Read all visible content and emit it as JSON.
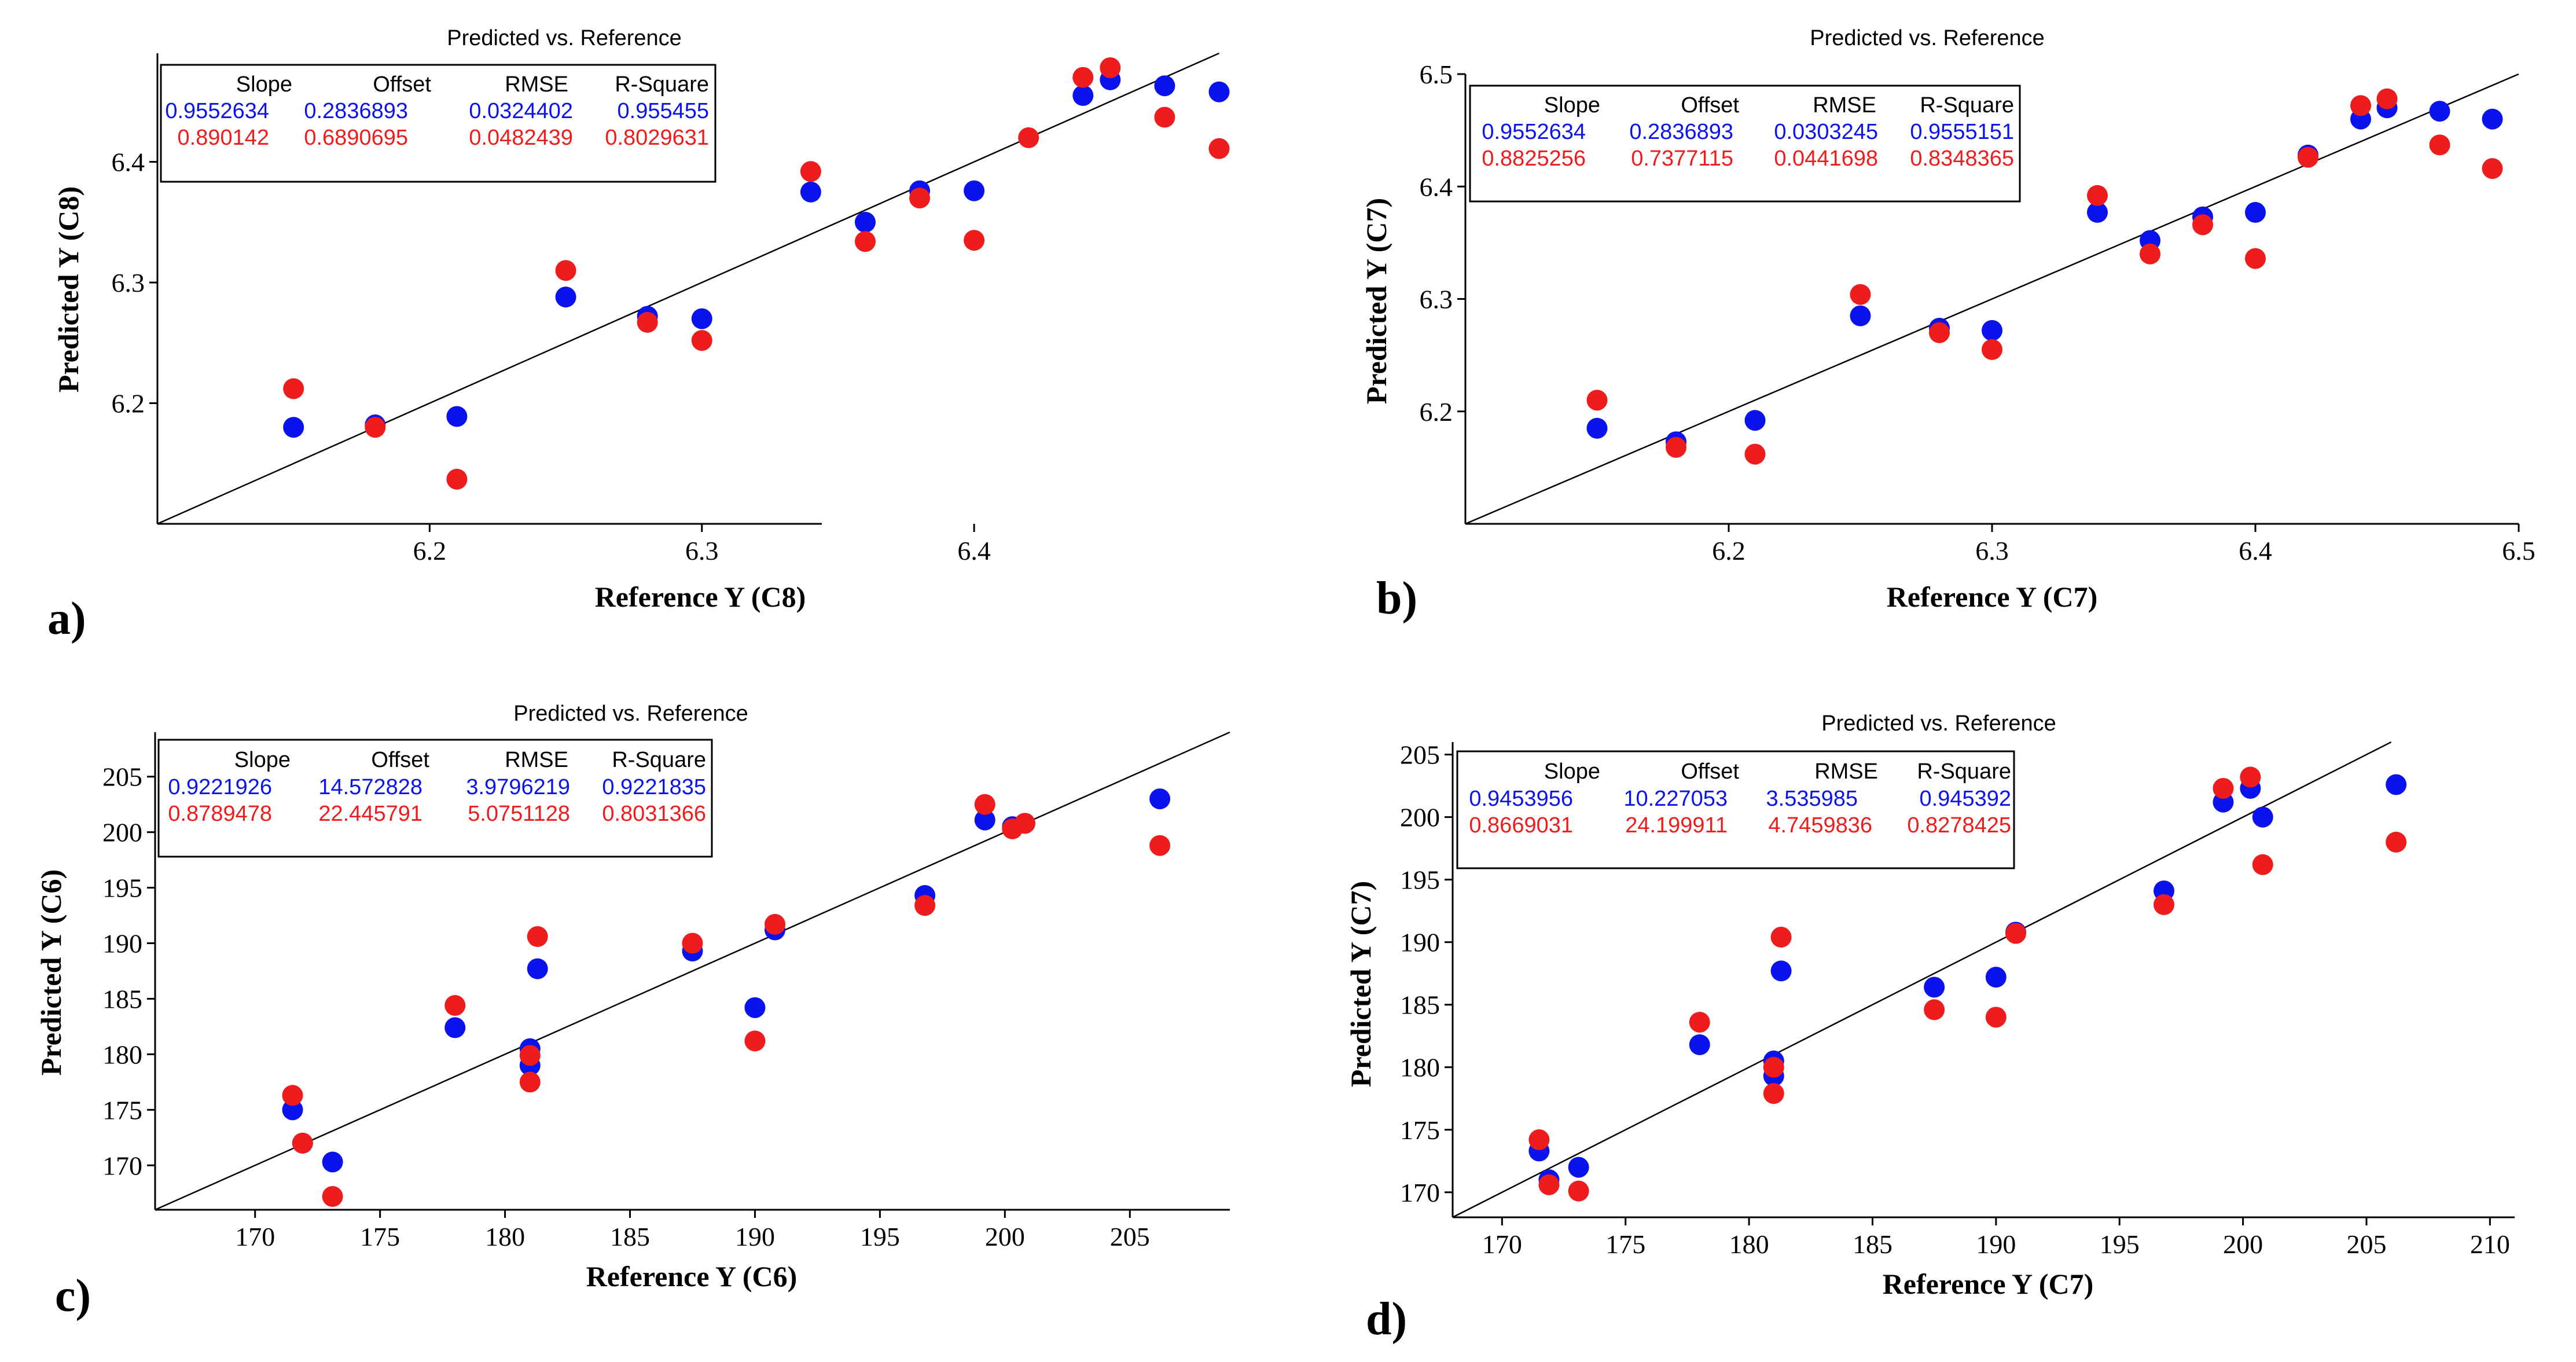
{
  "colors": {
    "blue_series": "#0a12ee",
    "red_series": "#ee1c1c",
    "axis": "#000000"
  },
  "chart_data": [
    {
      "panel_label": "a)",
      "type": "scatter",
      "title": "Predicted vs. Reference",
      "xlabel": "Reference Y (C8)",
      "ylabel": "Predicted Y (C8)",
      "xlim": [
        6.1,
        6.495
      ],
      "ylim": [
        6.1,
        6.49
      ],
      "xticks": [
        6.2,
        6.3,
        6.4
      ],
      "xtick_labels": [
        "6.2",
        "6.3",
        "6.4"
      ],
      "yticks": [
        6.2,
        6.3,
        6.4
      ],
      "ytick_labels": [
        "6.2",
        "6.3",
        "6.4"
      ],
      "target_line": [
        [
          6.1,
          6.1
        ],
        [
          6.49,
          6.49
        ]
      ],
      "stats_table": {
        "headers": [
          "Slope",
          "Offset",
          "RMSE",
          "R-Square"
        ],
        "rows": [
          {
            "series": "blue",
            "values": [
              "0.9552634",
              "0.2836893",
              "0.0324402",
              "0.955455"
            ]
          },
          {
            "series": "red",
            "values": [
              "0.890142",
              "0.6890695",
              "0.0482439",
              "0.8029631"
            ]
          }
        ]
      },
      "series": [
        {
          "name": "blue",
          "x": [
            6.15,
            6.18,
            6.21,
            6.25,
            6.28,
            6.3,
            6.34,
            6.36,
            6.38,
            6.4,
            6.44,
            6.45,
            6.47,
            6.49
          ],
          "y": [
            6.18,
            6.182,
            6.189,
            6.288,
            6.272,
            6.27,
            6.375,
            6.35,
            6.376,
            6.376,
            6.455,
            6.468,
            6.463,
            6.458
          ]
        },
        {
          "name": "red",
          "x": [
            6.15,
            6.18,
            6.21,
            6.25,
            6.28,
            6.3,
            6.34,
            6.36,
            6.38,
            6.4,
            6.42,
            6.44,
            6.45,
            6.47,
            6.49
          ],
          "y": [
            6.212,
            6.18,
            6.137,
            6.31,
            6.267,
            6.252,
            6.392,
            6.334,
            6.37,
            6.335,
            6.42,
            6.47,
            6.478,
            6.437,
            6.411
          ]
        }
      ]
    },
    {
      "panel_label": "b)",
      "type": "scatter",
      "title": "Predicted vs. Reference",
      "xlabel": "Reference Y (C7)",
      "ylabel": "Predicted Y (C7)",
      "xlim": [
        6.1,
        6.5
      ],
      "ylim": [
        6.1,
        6.5
      ],
      "xticks": [
        6.2,
        6.3,
        6.4,
        6.5
      ],
      "xtick_labels": [
        "6.2",
        "6.3",
        "6.4",
        "6.5"
      ],
      "yticks": [
        6.2,
        6.3,
        6.4,
        6.5
      ],
      "ytick_labels": [
        "6.2",
        "6.3",
        "6.4",
        "6.5"
      ],
      "target_line": [
        [
          6.1,
          6.1
        ],
        [
          6.5,
          6.5
        ]
      ],
      "stats_table": {
        "headers": [
          "Slope",
          "Offset",
          "RMSE",
          "R-Square"
        ],
        "rows": [
          {
            "series": "blue",
            "values": [
              "0.9552634",
              "0.2836893",
              "0.0303245",
              "0.9555151"
            ]
          },
          {
            "series": "red",
            "values": [
              "0.8825256",
              "0.7377115",
              "0.0441698",
              "0.8348365"
            ]
          }
        ]
      },
      "series": [
        {
          "name": "blue",
          "x": [
            6.15,
            6.18,
            6.21,
            6.25,
            6.28,
            6.3,
            6.34,
            6.36,
            6.38,
            6.4,
            6.42,
            6.44,
            6.45,
            6.47,
            6.49
          ],
          "y": [
            6.185,
            6.173,
            6.192,
            6.285,
            6.274,
            6.272,
            6.377,
            6.352,
            6.373,
            6.377,
            6.428,
            6.46,
            6.47,
            6.467,
            6.46
          ]
        },
        {
          "name": "red",
          "x": [
            6.15,
            6.18,
            6.21,
            6.25,
            6.28,
            6.3,
            6.34,
            6.36,
            6.38,
            6.4,
            6.42,
            6.44,
            6.45,
            6.47,
            6.49
          ],
          "y": [
            6.21,
            6.168,
            6.162,
            6.304,
            6.27,
            6.255,
            6.392,
            6.34,
            6.366,
            6.336,
            6.426,
            6.472,
            6.478,
            6.437,
            6.416
          ]
        }
      ]
    },
    {
      "panel_label": "c)",
      "type": "scatter",
      "title": "Predicted vs. Reference",
      "xlabel": "Reference Y (C6)",
      "ylabel": "Predicted Y (C6)",
      "xlim": [
        166,
        209
      ],
      "ylim": [
        166,
        209
      ],
      "xticks": [
        170,
        175,
        180,
        185,
        190,
        195,
        200,
        205
      ],
      "xtick_labels": [
        "170",
        "175",
        "180",
        "185",
        "190",
        "195",
        "200",
        "205"
      ],
      "yticks": [
        170,
        175,
        180,
        185,
        190,
        195,
        200,
        205
      ],
      "ytick_labels": [
        "170",
        "175",
        "180",
        "185",
        "190",
        "195",
        "200",
        "205"
      ],
      "target_line": [
        [
          166,
          166
        ],
        [
          209,
          209
        ]
      ],
      "stats_table": {
        "headers": [
          "Slope",
          "Offset",
          "RMSE",
          "R-Square"
        ],
        "rows": [
          {
            "series": "blue",
            "values": [
              "0.9221926",
              "14.572828",
              "3.9796219",
              "0.9221835"
            ]
          },
          {
            "series": "red",
            "values": [
              "0.8789478",
              "22.445791",
              "5.0751128",
              "0.8031366"
            ]
          }
        ]
      },
      "series": [
        {
          "name": "blue",
          "x": [
            171.5,
            171.9,
            173.1,
            178.0,
            181.0,
            181.0,
            181.3,
            187.5,
            190.0,
            190.8,
            196.8,
            199.2,
            200.3,
            200.8,
            206.2
          ],
          "y": [
            175.0,
            172.0,
            170.3,
            182.4,
            180.5,
            179.0,
            187.7,
            189.3,
            184.2,
            191.2,
            194.3,
            201.1,
            200.5,
            200.8,
            203.0
          ]
        },
        {
          "name": "red",
          "x": [
            171.5,
            171.9,
            173.1,
            178.0,
            181.0,
            181.0,
            181.3,
            187.5,
            190.0,
            190.8,
            196.8,
            199.2,
            200.3,
            200.8,
            206.2
          ],
          "y": [
            176.3,
            172.0,
            167.2,
            184.4,
            179.9,
            177.5,
            190.6,
            190.0,
            181.2,
            191.7,
            193.4,
            202.5,
            200.3,
            200.8,
            198.8
          ]
        }
      ]
    },
    {
      "panel_label": "d)",
      "type": "scatter",
      "title": "Predicted vs. Reference",
      "xlabel": "Reference Y (C7)",
      "ylabel": "Predicted Y (C7)",
      "xlim": [
        168,
        211
      ],
      "ylim": [
        168,
        206
      ],
      "xticks": [
        170,
        175,
        180,
        185,
        190,
        195,
        200,
        205,
        210
      ],
      "xtick_labels": [
        "170",
        "175",
        "180",
        "185",
        "190",
        "195",
        "200",
        "205",
        "210"
      ],
      "yticks": [
        170,
        175,
        180,
        185,
        190,
        195,
        200,
        205
      ],
      "ytick_labels": [
        "170",
        "175",
        "180",
        "185",
        "190",
        "195",
        "200",
        "205"
      ],
      "target_line": [
        [
          168,
          168
        ],
        [
          206,
          206
        ]
      ],
      "stats_table": {
        "headers": [
          "Slope",
          "Offset",
          "RMSE",
          "R-Square"
        ],
        "rows": [
          {
            "series": "blue",
            "values": [
              "0.9453956",
              "10.227053",
              "3.535985",
              "0.945392"
            ]
          },
          {
            "series": "red",
            "values": [
              "0.8669031",
              "24.199911",
              "4.7459836",
              "0.8278425"
            ]
          }
        ]
      },
      "series": [
        {
          "name": "blue",
          "x": [
            171.5,
            171.9,
            173.1,
            178.0,
            181.0,
            181.0,
            181.3,
            187.5,
            190.0,
            190.8,
            196.8,
            199.2,
            200.3,
            200.8,
            206.2
          ],
          "y": [
            173.3,
            171.0,
            172.0,
            181.8,
            180.5,
            179.3,
            187.7,
            186.4,
            187.2,
            190.8,
            194.1,
            201.2,
            202.3,
            200.0,
            202.6
          ]
        },
        {
          "name": "red",
          "x": [
            171.5,
            171.9,
            173.1,
            178.0,
            181.0,
            181.0,
            181.3,
            187.5,
            190.0,
            190.8,
            196.8,
            199.2,
            200.3,
            200.8,
            206.2
          ],
          "y": [
            174.2,
            170.6,
            170.1,
            183.6,
            180.0,
            177.9,
            190.4,
            184.6,
            184.0,
            190.7,
            193.0,
            202.3,
            203.2,
            196.2,
            198.0
          ]
        }
      ]
    }
  ]
}
